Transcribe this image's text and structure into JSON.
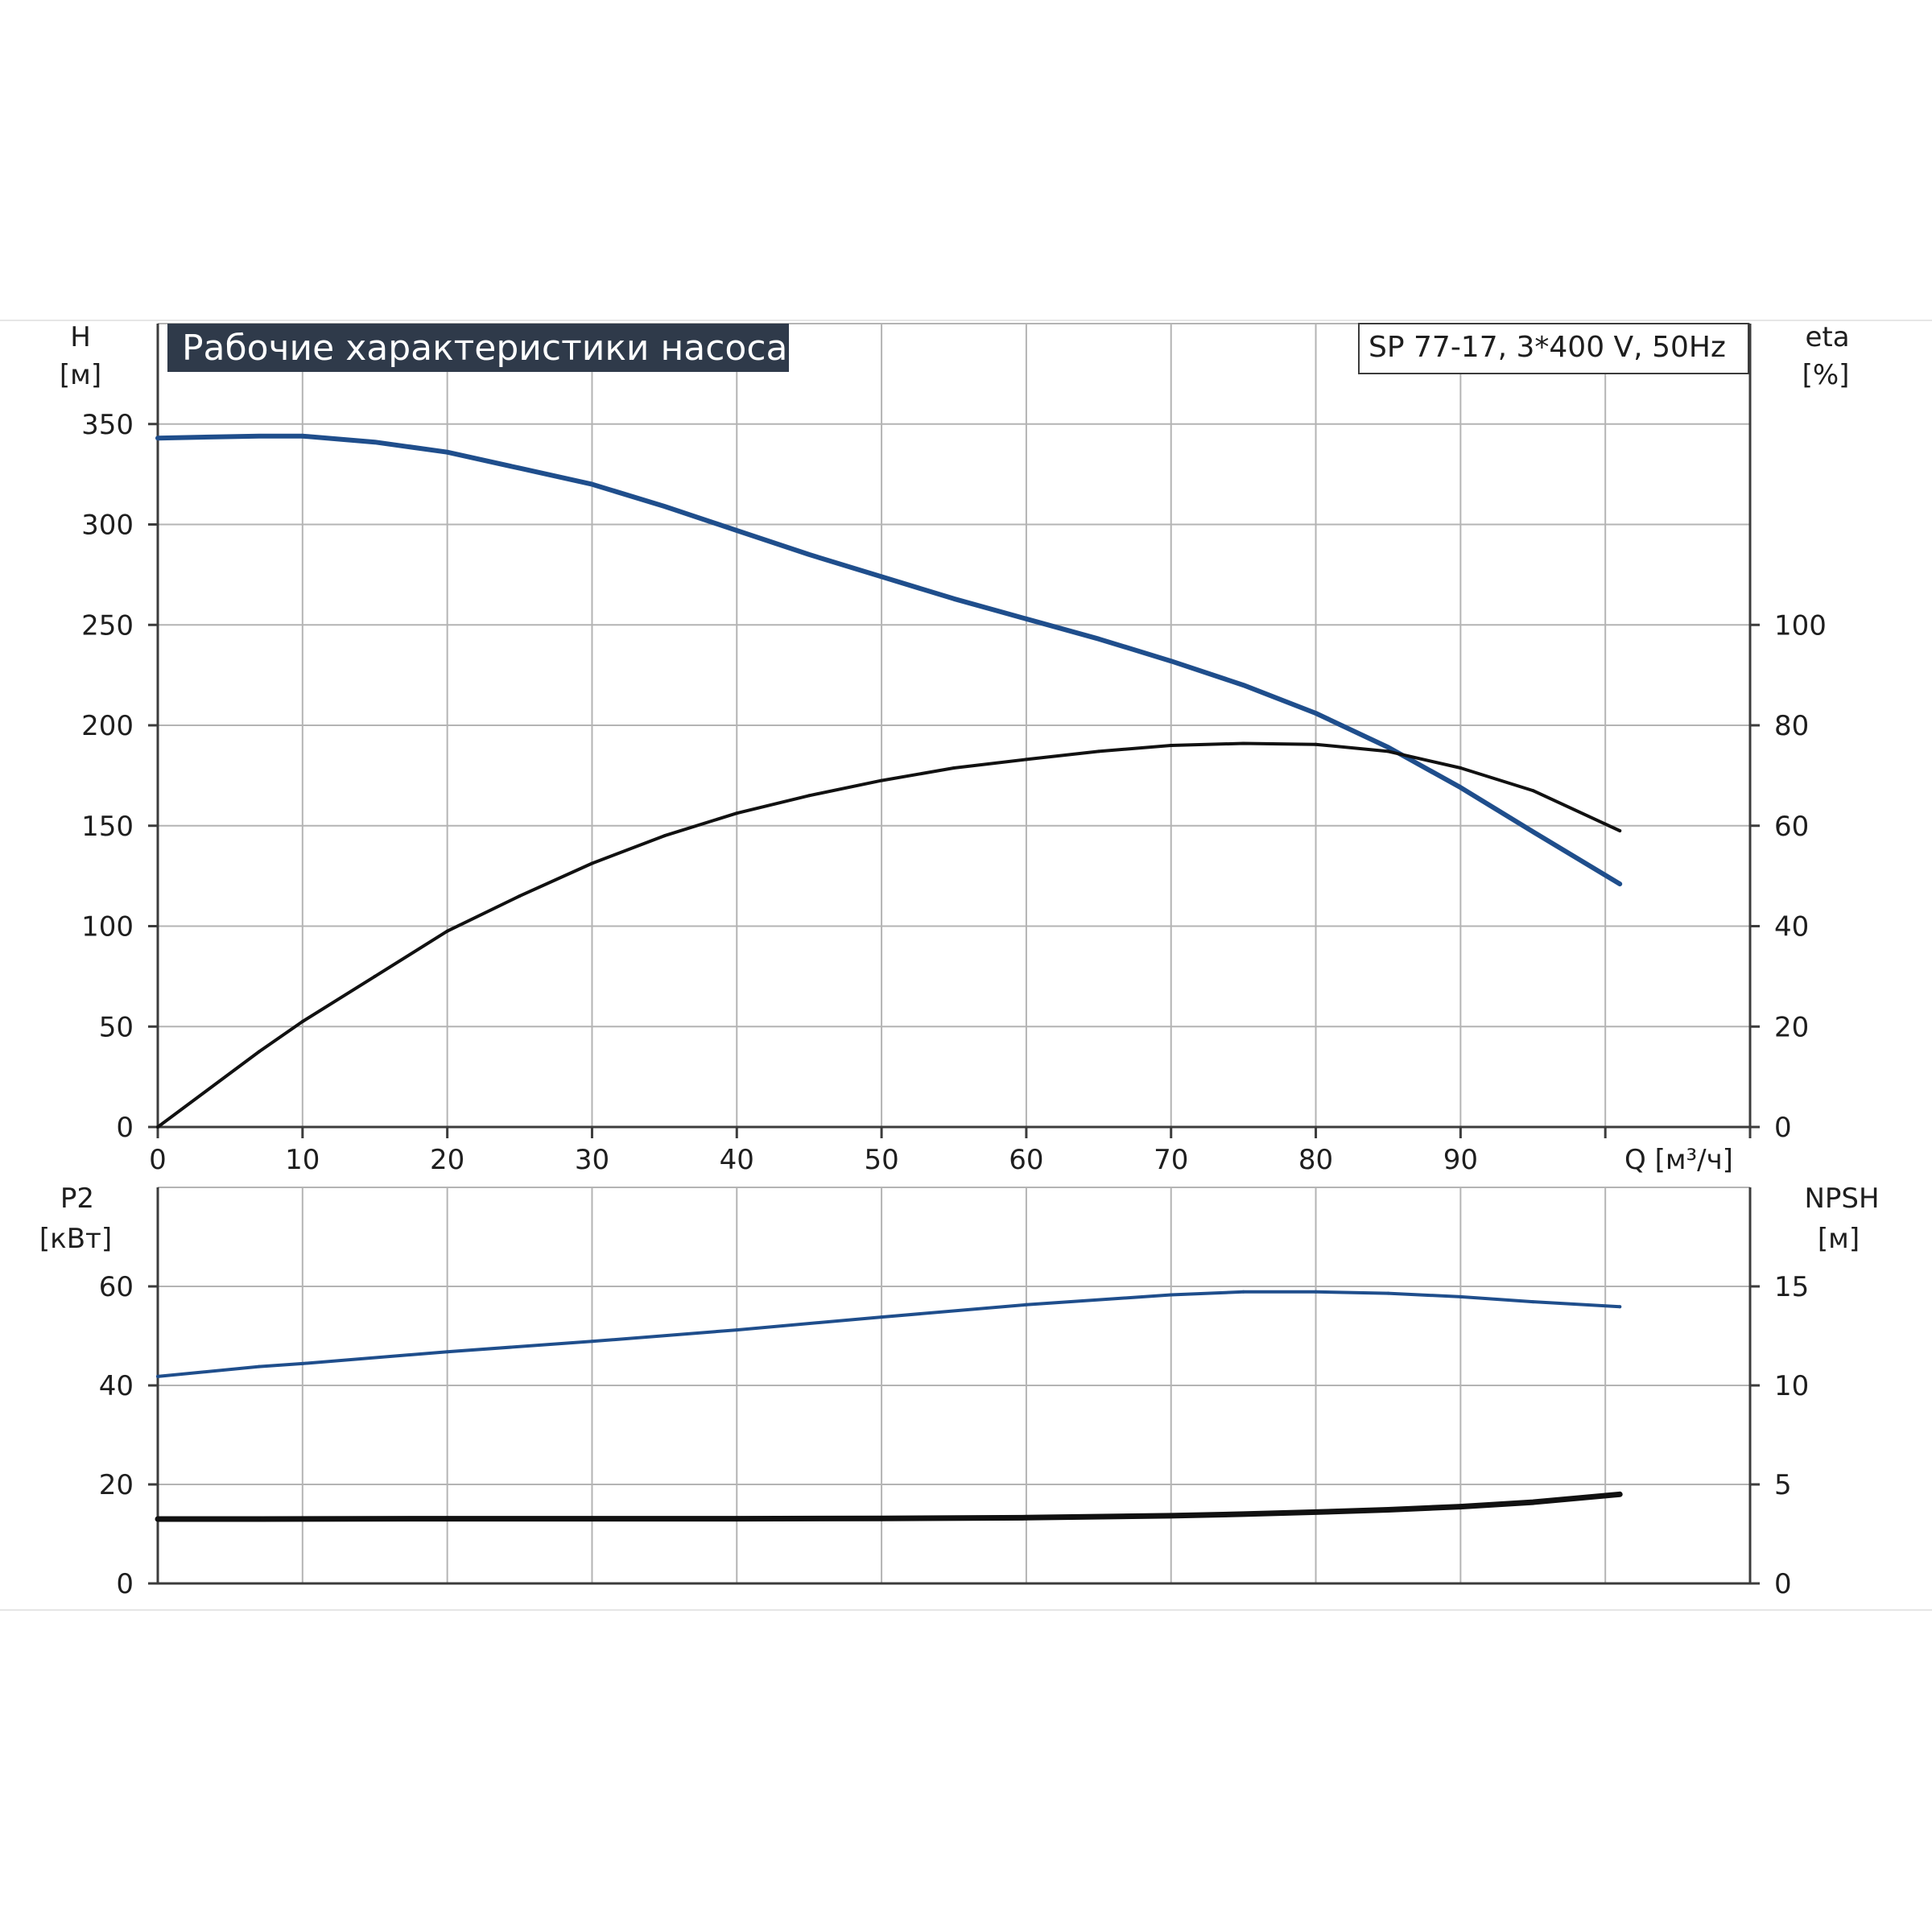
{
  "chart_data": {
    "type": "line",
    "title": "Рабочие характеристики насоса",
    "model_label": "SP 77-17, 3*400 V, 50Hz",
    "grid": true,
    "colors": {
      "blue": "#1f4e8c",
      "black": "#111111",
      "title_bg": "#2f3a4a"
    },
    "x_axis": {
      "label": "Q [м³/ч]",
      "ticks": [
        "0",
        "10",
        "20",
        "30",
        "40",
        "50",
        "60",
        "70",
        "80",
        "90"
      ],
      "range": [
        0,
        110
      ]
    },
    "top_panel": {
      "left_axis": {
        "label_top": "H",
        "label_bottom": "[м]",
        "range": [
          0,
          400
        ],
        "ticks": [
          "0",
          "50",
          "100",
          "150",
          "200",
          "250",
          "300",
          "350"
        ]
      },
      "right_axis": {
        "label_top": "eta",
        "label_bottom": "[%]",
        "range": [
          0,
          160
        ],
        "ticks": [
          "0",
          "20",
          "40",
          "60",
          "80",
          "100"
        ]
      },
      "series": [
        {
          "axis": "left",
          "color": "blue",
          "width": 6,
          "x": [
            0,
            7,
            10,
            15,
            20,
            25,
            30,
            35,
            40,
            45,
            50,
            55,
            60,
            65,
            70,
            75,
            80,
            85,
            90,
            95,
            101
          ],
          "y": [
            343,
            344,
            344,
            341,
            336,
            328,
            320,
            309,
            297,
            285,
            274,
            263,
            253,
            243,
            232,
            220,
            206,
            189,
            169,
            147,
            121
          ]
        },
        {
          "axis": "right",
          "color": "black",
          "width": 4,
          "x": [
            0,
            7,
            10,
            15,
            20,
            25,
            30,
            35,
            40,
            45,
            50,
            55,
            60,
            65,
            70,
            75,
            80,
            85,
            90,
            95,
            101
          ],
          "y": [
            0,
            15,
            21,
            30,
            39,
            46,
            52.5,
            58,
            62.5,
            66,
            69,
            71.5,
            73.2,
            74.8,
            76,
            76.4,
            76.2,
            74.8,
            71.5,
            67,
            59
          ]
        }
      ]
    },
    "bottom_panel": {
      "left_axis": {
        "label_top": "P2",
        "label_bottom": "[кВт]",
        "range": [
          0,
          80
        ],
        "ticks": [
          "0",
          "20",
          "40",
          "60"
        ]
      },
      "right_axis": {
        "label_top": "NPSH",
        "label_bottom": "[м]",
        "range": [
          0,
          20
        ],
        "ticks": [
          "0",
          "5",
          "10",
          "15"
        ]
      },
      "series": [
        {
          "axis": "left",
          "color": "blue",
          "width": 4,
          "x": [
            0,
            7,
            10,
            20,
            30,
            40,
            50,
            60,
            70,
            75,
            80,
            85,
            90,
            95,
            101
          ],
          "y": [
            41.8,
            43.8,
            44.4,
            46.8,
            48.9,
            51.2,
            53.8,
            56.3,
            58.3,
            58.9,
            58.9,
            58.6,
            57.9,
            56.9,
            55.9
          ]
        },
        {
          "axis": "right",
          "color": "black",
          "width": 7,
          "x": [
            0,
            7,
            20,
            40,
            50,
            60,
            70,
            75,
            80,
            85,
            90,
            95,
            101
          ],
          "y": [
            3.25,
            3.25,
            3.27,
            3.27,
            3.28,
            3.32,
            3.42,
            3.5,
            3.6,
            3.72,
            3.88,
            4.1,
            4.5
          ]
        }
      ]
    }
  }
}
